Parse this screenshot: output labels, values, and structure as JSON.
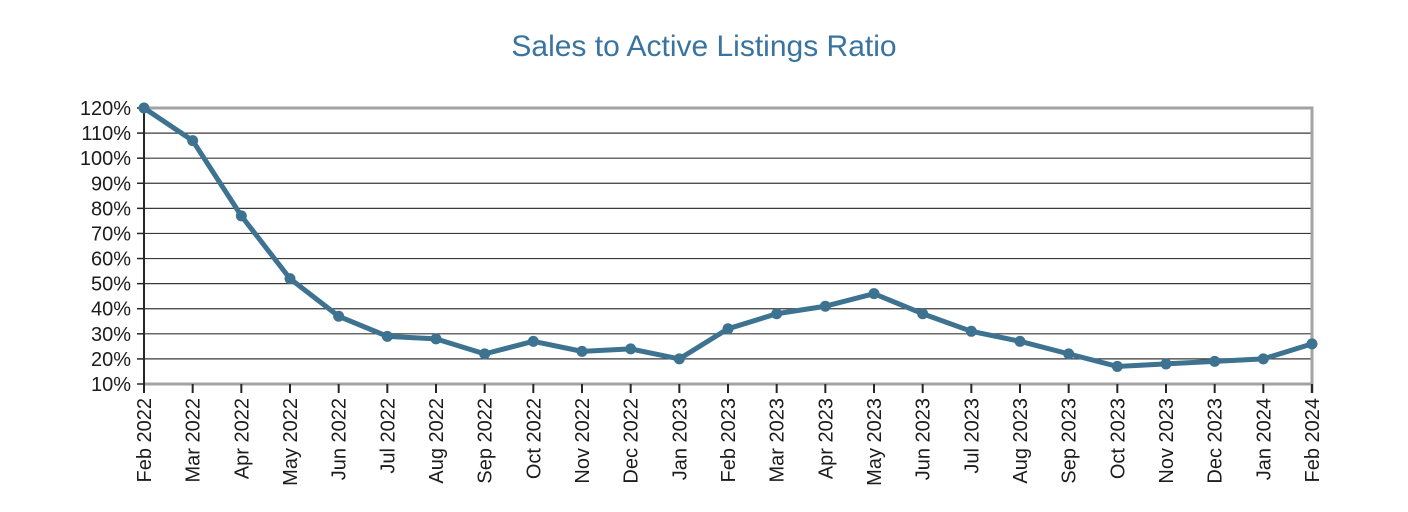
{
  "chart_data": {
    "type": "line",
    "title": "Sales to Active Listings Ratio",
    "categories": [
      "Feb 2022",
      "Mar 2022",
      "Apr 2022",
      "May 2022",
      "Jun 2022",
      "Jul 2022",
      "Aug 2022",
      "Sep 2022",
      "Oct 2022",
      "Nov 2022",
      "Dec 2022",
      "Jan 2023",
      "Feb 2023",
      "Mar 2023",
      "Apr 2023",
      "May 2023",
      "Jun 2023",
      "Jul 2023",
      "Aug 2023",
      "Sep 2023",
      "Oct 2023",
      "Nov 2023",
      "Dec 2023",
      "Jan 2024",
      "Feb 2024"
    ],
    "series": [
      {
        "name": "Sales to Active Listings Ratio",
        "values": [
          120,
          107,
          77,
          52,
          37,
          29,
          28,
          22,
          27,
          23,
          24,
          20,
          32,
          38,
          41,
          46,
          38,
          31,
          27,
          22,
          17,
          18,
          19,
          20,
          26
        ]
      }
    ],
    "ylim": [
      10,
      120
    ],
    "y_tick_step": 10,
    "y_tick_suffix": "%",
    "y_tick_labels": [
      "120%",
      "110%",
      "100%",
      "90%",
      "80%",
      "70%",
      "60%",
      "50%",
      "40%",
      "30%",
      "20%",
      "10%"
    ],
    "x_tick_rotation": -90,
    "legend": "none",
    "grid": "horizontal",
    "colors": {
      "line": "#3D7290",
      "marker": "#3D7290",
      "title": "#3973A0",
      "axis_text": "#1c1c1c",
      "gridline": "#3a3a3a",
      "plot_border": "#a3a3a3",
      "axis_line": "#262626",
      "background": "#ffffff"
    }
  }
}
